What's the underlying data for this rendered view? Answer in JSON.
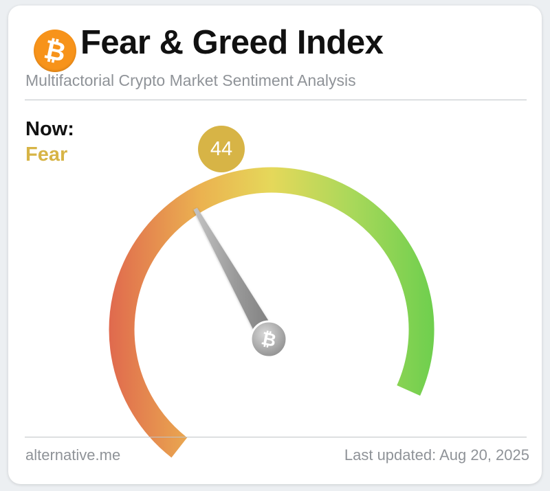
{
  "header": {
    "logo_icon": "bitcoin-icon",
    "title": "Fear & Greed Index",
    "subtitle": "Multifactorial Crypto Market Sentiment Analysis"
  },
  "status": {
    "now_label": "Now:",
    "sentiment": "Fear",
    "index_value": "44",
    "accent_color": "#d7b446"
  },
  "gauge": {
    "min": 0,
    "max": 100,
    "value": 44,
    "gradient_colors": [
      "#e06a4e",
      "#ebb250",
      "#e5d85a",
      "#a9d85a",
      "#6fcf4e"
    ],
    "hub_icon": "bitcoin-icon"
  },
  "footer": {
    "source": "alternative.me",
    "updated": "Last updated: Aug 20, 2025"
  }
}
